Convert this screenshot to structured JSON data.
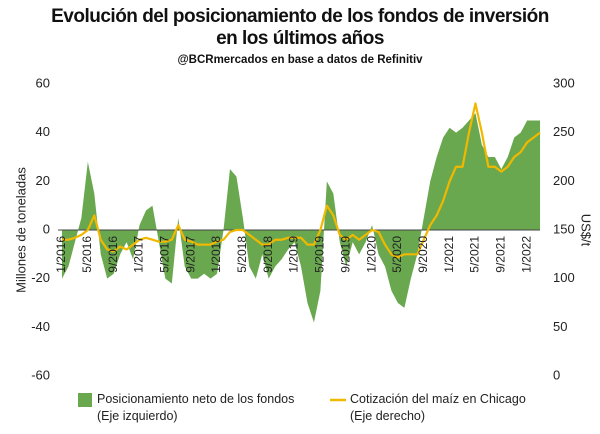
{
  "chart_data": {
    "type": "area-line",
    "title": "Evolución del posicionamiento de los fondos de inversión\nen los últimos años",
    "subtitle": "@BCRmercados en base a datos de Refinitiv",
    "ylabel": "Millones de toneladas",
    "y2label": "US$/t",
    "categories": [
      "1/2016",
      null,
      null,
      null,
      "5/2016",
      null,
      null,
      null,
      "9/2016",
      null,
      null,
      null,
      "1/2017",
      null,
      null,
      null,
      "5/2017",
      null,
      null,
      null,
      "9/2017",
      null,
      null,
      null,
      "1/2018",
      null,
      null,
      null,
      "5/2018",
      null,
      null,
      null,
      "9/2018",
      null,
      null,
      null,
      "1/2019",
      null,
      null,
      null,
      "5/2019",
      null,
      null,
      null,
      "9/2019",
      null,
      null,
      null,
      "1/2020",
      null,
      null,
      null,
      "5/2020",
      null,
      null,
      null,
      "9/2020",
      null,
      null,
      null,
      "1/2021",
      null,
      null,
      null,
      "5/2021",
      null,
      null,
      null,
      "9/2021",
      null,
      null,
      null,
      "1/2022",
      null,
      null
    ],
    "series": [
      {
        "name": "Posicionamiento neto de los fondos\n(Eje izquierdo)",
        "color": "#6aa84f",
        "axis": "y",
        "values": [
          -20,
          -15,
          -5,
          5,
          28,
          15,
          -10,
          -20,
          -18,
          -10,
          -5,
          -12,
          2,
          8,
          10,
          -5,
          -20,
          -22,
          5,
          -15,
          -20,
          -20,
          -18,
          -20,
          -18,
          0,
          25,
          22,
          5,
          -15,
          -20,
          -10,
          -20,
          -15,
          -12,
          -8,
          -5,
          -15,
          -30,
          -38,
          -25,
          20,
          15,
          -5,
          -15,
          -5,
          -10,
          -5,
          2,
          -10,
          -15,
          -25,
          -30,
          -32,
          -20,
          -10,
          5,
          20,
          30,
          38,
          42,
          40,
          42,
          45,
          48,
          35,
          30,
          30,
          25,
          30,
          38,
          40,
          45,
          45,
          45
        ]
      },
      {
        "name": "Cotización del maíz en Chicago\n(Eje derecho)",
        "color": "#f1b800",
        "axis": "y2",
        "values": [
          140,
          140,
          142,
          145,
          150,
          165,
          140,
          130,
          128,
          133,
          130,
          135,
          140,
          142,
          140,
          138,
          138,
          140,
          155,
          140,
          138,
          135,
          135,
          135,
          138,
          140,
          148,
          150,
          150,
          145,
          140,
          135,
          135,
          140,
          140,
          142,
          142,
          142,
          135,
          135,
          150,
          175,
          165,
          145,
          140,
          145,
          140,
          145,
          150,
          148,
          135,
          125,
          122,
          125,
          125,
          125,
          140,
          155,
          165,
          180,
          200,
          215,
          215,
          250,
          280,
          250,
          215,
          215,
          210,
          215,
          225,
          230,
          240,
          245,
          250
        ]
      }
    ],
    "ylim": [
      -60,
      60
    ],
    "yticks": [
      -60,
      -40,
      -20,
      0,
      20,
      40,
      60
    ],
    "y2lim": [
      0,
      300
    ],
    "y2ticks": [
      0,
      50,
      100,
      150,
      200,
      250,
      300
    ]
  }
}
